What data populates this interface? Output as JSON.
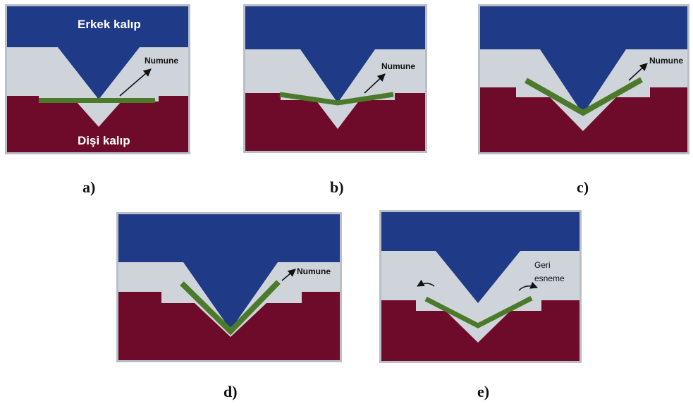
{
  "colors": {
    "upper_die": "#1f3a87",
    "lower_die": "#6e0b2a",
    "gap": "#cfd3da",
    "frame": "#b9bec7",
    "sample": "#4b7a2a"
  },
  "labels": {
    "upper_die": "Erkek kalıp",
    "lower_die": "Dişi kalıp",
    "sample": "Numune",
    "springback_line1": "Geri",
    "springback_line2": "esneme"
  },
  "panels": [
    {
      "id": "a",
      "caption": "a)"
    },
    {
      "id": "b",
      "caption": "b)"
    },
    {
      "id": "c",
      "caption": "c)"
    },
    {
      "id": "d",
      "caption": "d)"
    },
    {
      "id": "e",
      "caption": "e)"
    }
  ]
}
